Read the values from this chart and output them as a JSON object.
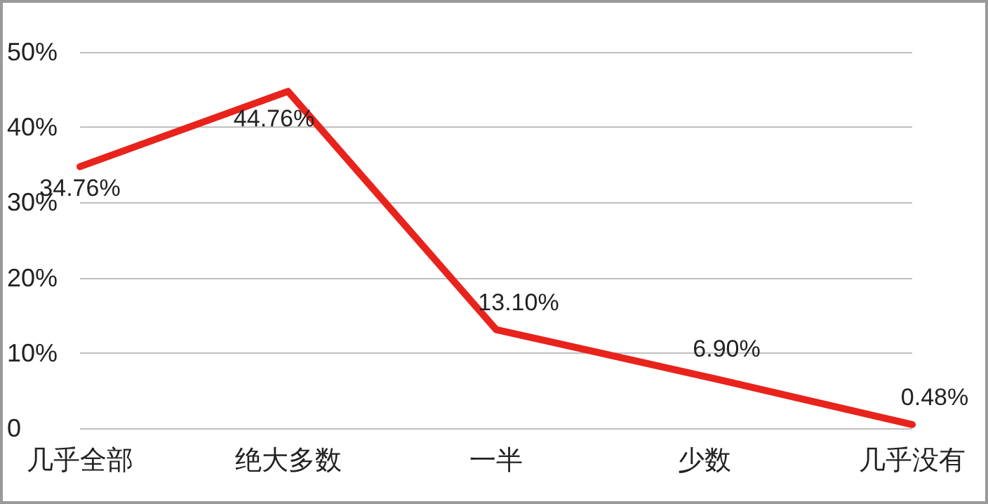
{
  "chart_data": {
    "type": "line",
    "categories": [
      "几乎全部",
      "绝大多数",
      "一半",
      "少数",
      "几乎没有"
    ],
    "series": [
      {
        "color": "#e8231c",
        "values": [
          34.76,
          44.76,
          13.1,
          6.9,
          0.48
        ],
        "value_labels": [
          "34.76%",
          "44.76%",
          "13.10%",
          "6.90%",
          "0.48%"
        ]
      }
    ],
    "ylim": [
      0,
      50
    ],
    "yticks": [
      0,
      {
        "value": 10,
        "label": "10%"
      },
      {
        "value": 20,
        "label": "20%"
      },
      {
        "value": 30,
        "label": "30%"
      },
      {
        "value": 40,
        "label": "40%"
      },
      {
        "value": 50,
        "label": "50%"
      }
    ],
    "grid": "y",
    "marker": "none",
    "line_style": "solid"
  }
}
